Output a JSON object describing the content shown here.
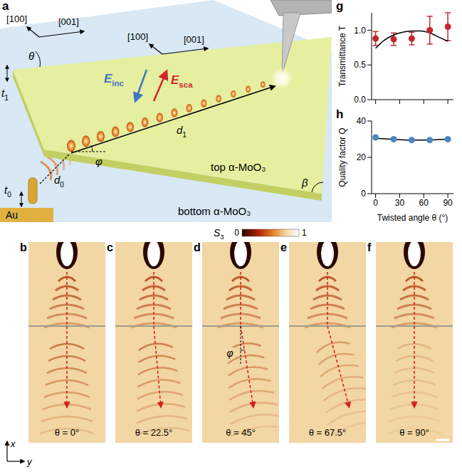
{
  "panel_a": {
    "letter": "a",
    "bottom_axes": [
      "[100]",
      "[001]"
    ],
    "top_axes": [
      "[100]",
      "[001]"
    ],
    "twist_angle": "θ",
    "incident": {
      "text": "E",
      "sub": "inc"
    },
    "scattered": {
      "text": "E",
      "sub": "sca"
    },
    "top_thickness": {
      "text": "t",
      "sub": "1"
    },
    "bottom_thickness": {
      "text": "t",
      "sub": "0"
    },
    "refraction_angle": "φ",
    "top_distance": {
      "text": "d",
      "sub": "1"
    },
    "bottom_distance": {
      "text": "d",
      "sub": "0"
    },
    "top_label": "top α-MoO₃",
    "bottom_label": "bottom α-MoO₃",
    "antenna": "Au",
    "edge_angle": "β"
  },
  "near_field": {
    "colorbar": {
      "label": {
        "text": "S",
        "sub": "3"
      },
      "range": [
        0,
        1
      ],
      "ticks": [
        0,
        1
      ]
    },
    "axes": [
      "x",
      "y"
    ],
    "panels": [
      {
        "letter": "b",
        "label": "θ = 0°"
      },
      {
        "letter": "c",
        "label": "θ = 22.5°"
      },
      {
        "letter": "d",
        "label": "θ = 45°",
        "angle_label": "φ"
      },
      {
        "letter": "e",
        "label": "θ = 67.5°"
      },
      {
        "letter": "f",
        "label": "θ = 90°"
      }
    ]
  },
  "chart_data": [
    {
      "panel_letter": "g",
      "type": "scatter",
      "y_label": "Transmittance T",
      "xlim": [
        -5,
        97
      ],
      "xticks": [
        0,
        30,
        60,
        90
      ],
      "ylim": [
        0,
        1.25
      ],
      "yticks": [
        {
          "value": 0,
          "label": "0.0"
        },
        {
          "value": 0.5,
          "label": "0.5"
        },
        {
          "value": 1,
          "label": "1.0"
        }
      ],
      "tick_labels": "y",
      "series": [
        {
          "color": "#c1272d",
          "marker": "circle",
          "x": [
            0,
            22.5,
            45,
            67.5,
            90
          ],
          "values": [
            0.88,
            0.87,
            0.88,
            1.0,
            1.05
          ],
          "errors": [
            0.1,
            0.09,
            0.09,
            0.2,
            0.2
          ]
        },
        {
          "type": "line",
          "color": "#000000",
          "x": [
            0,
            11.25,
            22.5,
            33.75,
            45,
            56.25,
            67.5,
            78.75,
            90
          ],
          "values": [
            0.74,
            0.86,
            0.93,
            0.97,
            0.99,
            0.99,
            0.96,
            0.9,
            0.84
          ]
        }
      ]
    },
    {
      "panel_letter": "h",
      "type": "scatter",
      "x_label": "Twisted angle θ (°)",
      "y_label": "Quality factor Q",
      "xlim": [
        -5,
        97
      ],
      "xticks": [
        0,
        30,
        60,
        90
      ],
      "ylim": [
        0,
        40
      ],
      "yticks": [
        0,
        20,
        40
      ],
      "series": [
        {
          "color": "#4a86c5",
          "marker": "circle",
          "x": [
            0,
            22.5,
            45,
            67.5,
            90
          ],
          "values": [
            31,
            30,
            29.5,
            29.5,
            30
          ]
        },
        {
          "type": "line",
          "color": "#000000",
          "x": [
            0,
            11.25,
            22.5,
            33.75,
            45,
            56.25,
            67.5,
            78.75,
            90
          ],
          "values": [
            30.5,
            30.2,
            29.9,
            29.6,
            29.5,
            29.5,
            29.6,
            29.8,
            30
          ]
        }
      ]
    }
  ]
}
